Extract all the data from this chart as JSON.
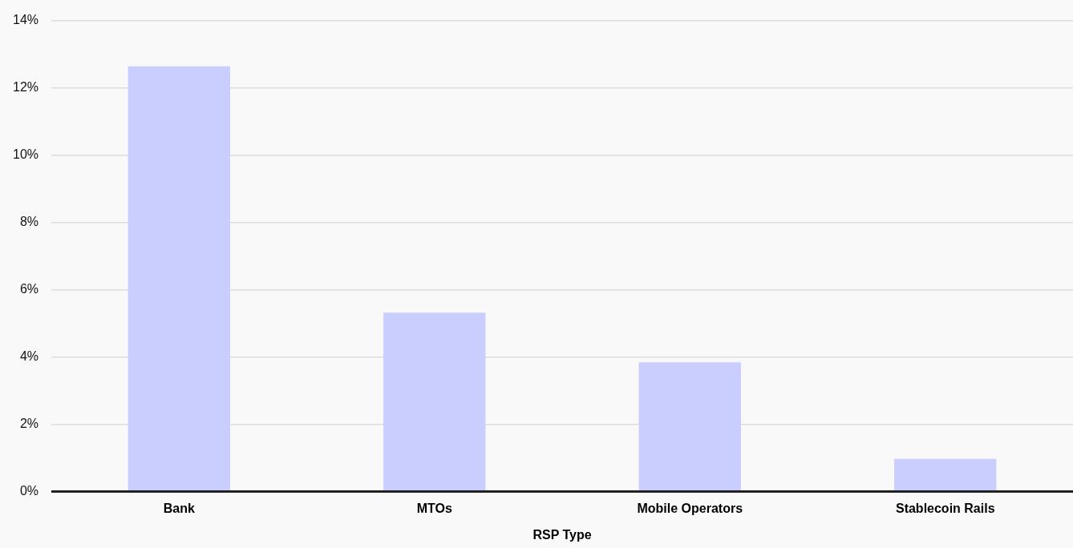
{
  "chart_data": {
    "type": "bar",
    "xlabel": "RSP Type",
    "categories": [
      "Bank",
      "MTOs",
      "Mobile Operators",
      "Stablecoin Rails"
    ],
    "values": [
      12.64,
      5.32,
      3.84,
      0.97
    ],
    "color": "#caceff",
    "ylim": [
      0,
      14
    ],
    "yticks": [
      {
        "value": 0,
        "label": "0%"
      },
      {
        "value": 2,
        "label": "2%"
      },
      {
        "value": 4,
        "label": "4%"
      },
      {
        "value": 6,
        "label": "6%"
      },
      {
        "value": 8,
        "label": "8%"
      },
      {
        "value": 10,
        "label": "10%"
      },
      {
        "value": 12,
        "label": "12%"
      },
      {
        "value": 14,
        "label": "14%"
      }
    ],
    "grid": "y",
    "legend": false
  }
}
